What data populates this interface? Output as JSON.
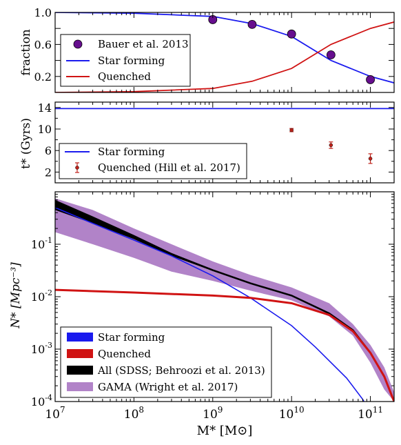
{
  "chart_data": [
    {
      "type": "scatter",
      "ylabel": "fraction",
      "yticks": [
        "0.2",
        "0.6",
        "1.0"
      ],
      "ylim": [
        0,
        1
      ],
      "xscale": "log",
      "xlim": [
        10000000.0,
        200000000000.0
      ],
      "series": [
        {
          "name": "Bauer et al. 2013",
          "kind": "points",
          "color": "#660e8e",
          "x": [
            1000000000.0,
            3160000000.0,
            10000000000.0,
            31600000000.0,
            100000000000.0
          ],
          "y": [
            0.91,
            0.85,
            0.73,
            0.47,
            0.16
          ]
        },
        {
          "name": "Star forming",
          "kind": "line",
          "color": "#1a1aee",
          "x": [
            10000000.0,
            100000000.0,
            1000000000.0,
            3160000000.0,
            10000000000.0,
            31600000000.0,
            100000000000.0,
            200000000000.0
          ],
          "y": [
            1.0,
            0.99,
            0.95,
            0.86,
            0.7,
            0.4,
            0.2,
            0.12
          ]
        },
        {
          "name": "Quenched",
          "kind": "line",
          "color": "#d01313",
          "x": [
            10000000.0,
            100000000.0,
            1000000000.0,
            3160000000.0,
            10000000000.0,
            31600000000.0,
            100000000000.0,
            200000000000.0
          ],
          "y": [
            0.0,
            0.01,
            0.05,
            0.14,
            0.3,
            0.6,
            0.8,
            0.88
          ]
        }
      ],
      "legend": "lower-left"
    },
    {
      "type": "scatter",
      "ylabel": "t* (Gyrs)",
      "yticks": [
        "2",
        "6",
        "10",
        "14"
      ],
      "ylim": [
        0,
        15
      ],
      "xscale": "log",
      "xlim": [
        10000000.0,
        200000000000.0
      ],
      "series": [
        {
          "name": "Star forming",
          "kind": "line",
          "color": "#1a1aee",
          "x": [
            10000000.0,
            200000000000.0
          ],
          "y": [
            13.8,
            13.8
          ]
        },
        {
          "name": "Quenched (Hill et al. 2017)",
          "kind": "errorbar",
          "color": "#c0221a",
          "x": [
            10000000000.0,
            31600000000.0,
            100000000000.0
          ],
          "y": [
            9.8,
            7.0,
            4.5
          ],
          "yerr": [
            0.3,
            0.6,
            0.9
          ]
        }
      ],
      "legend": "lower-left"
    },
    {
      "type": "line",
      "xlabel": "M* [M⊙]",
      "ylabel": "N* [Mpc⁻³]",
      "xscale": "log",
      "yscale": "log",
      "xlim": [
        10000000.0,
        200000000000.0
      ],
      "ylim": [
        0.0001,
        1
      ],
      "xticks": [
        "10^7",
        "10^8",
        "10^9",
        "10^10",
        "10^11"
      ],
      "yticks": [
        "10^-4",
        "10^-3",
        "10^-2",
        "10^-1"
      ],
      "series": [
        {
          "name": "Star forming",
          "kind": "line",
          "color": "#1a1aee",
          "x": [
            10000000.0,
            30000000.0,
            100000000.0,
            300000000.0,
            1000000000.0,
            3000000000.0,
            10000000000.0,
            20000000000.0,
            50000000000.0,
            80000000000.0,
            100000000000.0
          ],
          "y": [
            0.5,
            0.25,
            0.12,
            0.06,
            0.025,
            0.0095,
            0.0028,
            0.0011,
            0.00028,
            0.00011,
            6e-05
          ]
        },
        {
          "name": "Quenched",
          "kind": "line",
          "color": "#d01313",
          "x": [
            10000000.0,
            100000000.0,
            1000000000.0,
            3000000000.0,
            10000000000.0,
            30000000000.0,
            60000000000.0,
            100000000000.0,
            150000000000.0,
            200000000000.0
          ],
          "y": [
            0.0135,
            0.012,
            0.0105,
            0.0095,
            0.0075,
            0.0045,
            0.0022,
            0.00085,
            0.0003,
            0.0001
          ]
        },
        {
          "name": "All (SDSS; Behroozi et al. 2013)",
          "kind": "band",
          "color": "#000000",
          "x": [
            10000000.0,
            30000000.0,
            100000000.0,
            300000000.0,
            1000000000.0,
            3000000000.0,
            10000000000.0,
            30000000000.0,
            60000000000.0,
            100000000000.0,
            150000000000.0,
            200000000000.0
          ],
          "y": [
            0.58,
            0.3,
            0.14,
            0.065,
            0.032,
            0.018,
            0.0105,
            0.0048,
            0.0023,
            0.00085,
            0.0003,
            0.0001
          ],
          "y_low": [
            0.45,
            0.25,
            0.125,
            0.06,
            0.031,
            0.0175,
            0.0102,
            0.0047,
            0.00225,
            0.00083,
            0.00029,
            0.0001
          ],
          "y_high": [
            0.7,
            0.34,
            0.15,
            0.068,
            0.033,
            0.0185,
            0.0108,
            0.0049,
            0.00235,
            0.00088,
            0.00031,
            0.0001
          ]
        },
        {
          "name": "GAMA (Wright et al. 2017)",
          "kind": "band",
          "color": "#b183c8",
          "x": [
            10000000.0,
            30000000.0,
            100000000.0,
            300000000.0,
            1000000000.0,
            3000000000.0,
            10000000000.0,
            30000000000.0,
            60000000000.0,
            100000000000.0,
            150000000000.0,
            200000000000.0
          ],
          "y_low": [
            0.17,
            0.1,
            0.055,
            0.03,
            0.02,
            0.013,
            0.0085,
            0.0042,
            0.0018,
            0.00055,
            0.00017,
            0.0001
          ],
          "y_high": [
            0.75,
            0.45,
            0.2,
            0.1,
            0.047,
            0.026,
            0.015,
            0.0075,
            0.003,
            0.0012,
            0.00045,
            0.00015
          ]
        }
      ],
      "legend": "lower-left"
    }
  ]
}
